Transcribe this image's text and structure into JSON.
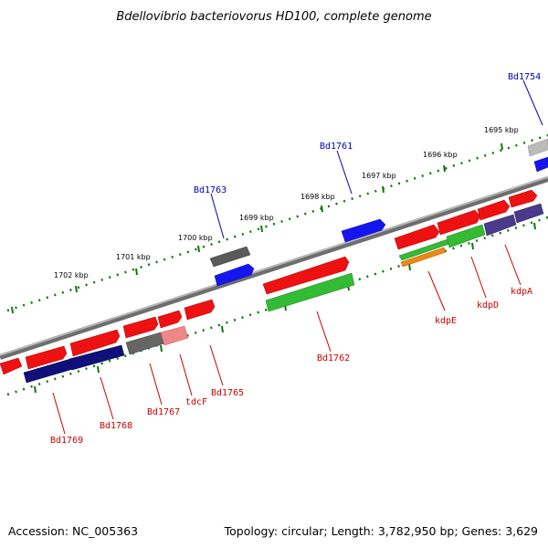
{
  "title": "Bdellovibrio bacteriovorus HD100, complete genome",
  "footer": {
    "accession": "Accession: NC_005363",
    "stats": "Topology: circular; Length: 3,782,950 bp; Genes: 3,629"
  },
  "colors": {
    "forward_gene": "#ee1111",
    "reverse_gene": "#10107a",
    "blue_gene": "#1515ee",
    "pseudo_gene": "#666666",
    "green_feature": "#33bb33",
    "orange_feature": "#ee8811",
    "label_forward": "#0000bb",
    "label_reverse": "#cc0000",
    "backbone": "#888888",
    "tick_dots": "#117711"
  },
  "scale_labels": [
    "1702 kbp",
    "1701 kbp",
    "1700 kbp",
    "1699 kbp",
    "1698 kbp",
    "1697 kbp",
    "1696 kbp",
    "1695 kbp"
  ],
  "gene_labels": {
    "forward": [
      "Bd1763",
      "Bd1761",
      "Bd1754"
    ],
    "reverse": [
      "Bd1769",
      "Bd1768",
      "Bd1767",
      "tdcF",
      "Bd1765",
      "Bd1762",
      "kdpE",
      "kdpD",
      "kdpA"
    ]
  }
}
